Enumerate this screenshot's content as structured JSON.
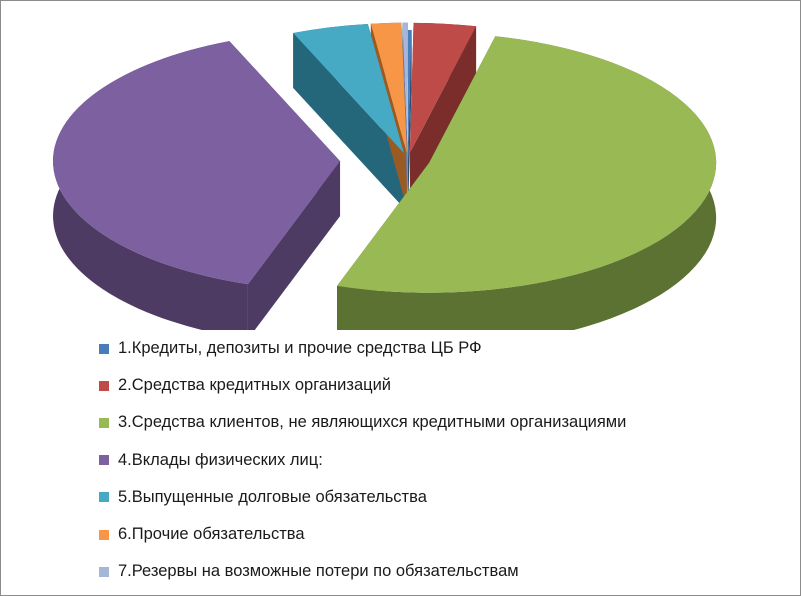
{
  "chart_data": {
    "type": "pie",
    "style": "3d-exploded",
    "title": "",
    "categories": [
      "1.Кредиты, депозиты  и прочие средства ЦБ РФ",
      "2.Средства кредитных организаций",
      "3.Средства клиентов, не являющихся кредитными организациями",
      "4.Вклады физических лиц:",
      "5.Выпущенные долговые обязательства",
      "6.Прочие обязательства",
      "7.Резервы на возможные потери по обязательствам"
    ],
    "values": [
      0.2,
      3.5,
      51.5,
      38.5,
      4.3,
      1.7,
      0.3
    ],
    "colors": [
      "#4a7ebb",
      "#be4b48",
      "#98b954",
      "#7d60a0",
      "#46aac5",
      "#f79646",
      "#a5b6d9"
    ],
    "side_colors": [
      "#2c4d73",
      "#7a2d2b",
      "#5c7232",
      "#4d3b64",
      "#25677a",
      "#9a5a23",
      "#6a7899"
    ],
    "legend_position": "bottom"
  }
}
